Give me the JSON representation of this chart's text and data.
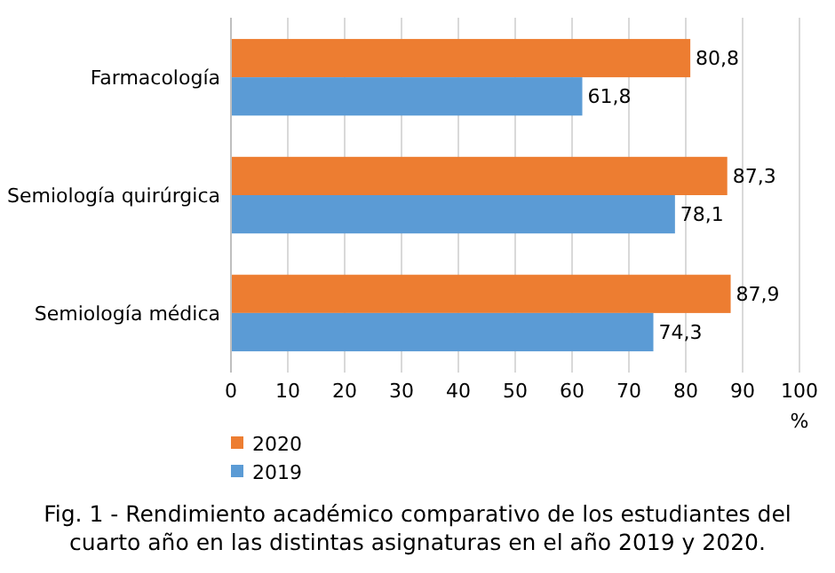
{
  "chart_data": {
    "type": "bar",
    "orientation": "horizontal",
    "title": "Fig. 1 - Rendimiento académico comparativo de los estudiantes del cuarto año en las distintas asignaturas en el año 2019 y 2020.",
    "xlabel": "%",
    "categories": [
      "Farmacología",
      "Semiología quirúrgica",
      "Semiología médica"
    ],
    "series": [
      {
        "name": "2020",
        "color": "#ed7d31",
        "values": [
          80.8,
          87.3,
          87.9
        ],
        "value_labels": [
          "80,8",
          "87,3",
          "87,9"
        ]
      },
      {
        "name": "2019",
        "color": "#5b9bd5",
        "values": [
          61.8,
          78.1,
          74.3
        ],
        "value_labels": [
          "61,8",
          "78,1",
          "74,3"
        ]
      }
    ],
    "xlim": [
      0,
      100
    ],
    "xticks": [
      0,
      10,
      20,
      30,
      40,
      50,
      60,
      70,
      80,
      90,
      100
    ],
    "grid": "x",
    "legend": "bottom"
  }
}
